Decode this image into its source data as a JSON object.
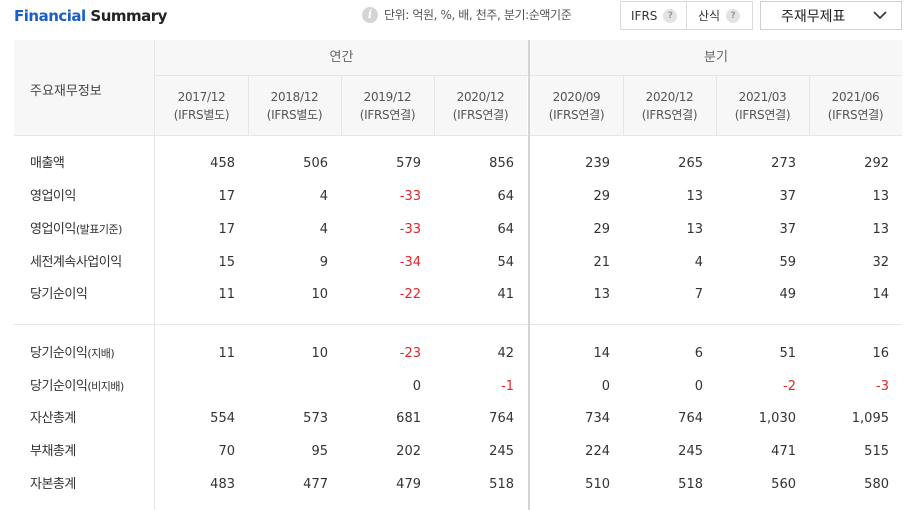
{
  "header": {
    "title_accent": "Financial",
    "title_rest": "Summary",
    "info_icon": "info-icon",
    "unit_text": "단위: 억원, %, 배, 천주, 분기:순액기준",
    "ifrs_label": "IFRS",
    "sansik_label": "산식",
    "help_symbol": "?",
    "dropdown_label": "주재무제표"
  },
  "table": {
    "row_header_label": "주요재무정보",
    "annual_label": "연간",
    "quarterly_label": "분기",
    "columns": [
      {
        "period": "2017/12",
        "basis": "(IFRS별도)"
      },
      {
        "period": "2018/12",
        "basis": "(IFRS별도)"
      },
      {
        "period": "2019/12",
        "basis": "(IFRS연결)"
      },
      {
        "period": "2020/12",
        "basis": "(IFRS연결)"
      },
      {
        "period": "2020/09",
        "basis": "(IFRS연결)"
      },
      {
        "period": "2020/12",
        "basis": "(IFRS연결)"
      },
      {
        "period": "2021/03",
        "basis": "(IFRS연결)"
      },
      {
        "period": "2021/06",
        "basis": "(IFRS연결)"
      }
    ],
    "rows": [
      {
        "label": "매출액",
        "sub": "",
        "values": [
          "458",
          "506",
          "579",
          "856",
          "239",
          "265",
          "273",
          "292"
        ]
      },
      {
        "label": "영업이익",
        "sub": "",
        "values": [
          "17",
          "4",
          "-33",
          "64",
          "29",
          "13",
          "37",
          "13"
        ]
      },
      {
        "label": "영업이익",
        "sub": "(발표기준)",
        "values": [
          "17",
          "4",
          "-33",
          "64",
          "29",
          "13",
          "37",
          "13"
        ]
      },
      {
        "label": "세전계속사업이익",
        "sub": "",
        "values": [
          "15",
          "9",
          "-34",
          "54",
          "21",
          "4",
          "59",
          "32"
        ]
      },
      {
        "label": "당기순이익",
        "sub": "",
        "values": [
          "11",
          "10",
          "-22",
          "41",
          "13",
          "7",
          "49",
          "14"
        ]
      },
      {
        "label": "당기순이익",
        "sub": "(지배)",
        "values": [
          "11",
          "10",
          "-23",
          "42",
          "14",
          "6",
          "51",
          "16"
        ]
      },
      {
        "label": "당기순이익",
        "sub": "(비지배)",
        "values": [
          "",
          "",
          "0",
          "-1",
          "0",
          "0",
          "-2",
          "-3"
        ]
      },
      {
        "label": "자산총계",
        "sub": "",
        "values": [
          "554",
          "573",
          "681",
          "764",
          "734",
          "764",
          "1,030",
          "1,095"
        ]
      },
      {
        "label": "부채총계",
        "sub": "",
        "values": [
          "70",
          "95",
          "202",
          "245",
          "224",
          "245",
          "471",
          "515"
        ]
      },
      {
        "label": "자본총계",
        "sub": "",
        "values": [
          "483",
          "477",
          "479",
          "518",
          "510",
          "518",
          "560",
          "580"
        ]
      }
    ]
  },
  "colors": {
    "accent": "#1a5fc4",
    "negative": "#e3262b",
    "header_bg": "#f7f7f7"
  }
}
